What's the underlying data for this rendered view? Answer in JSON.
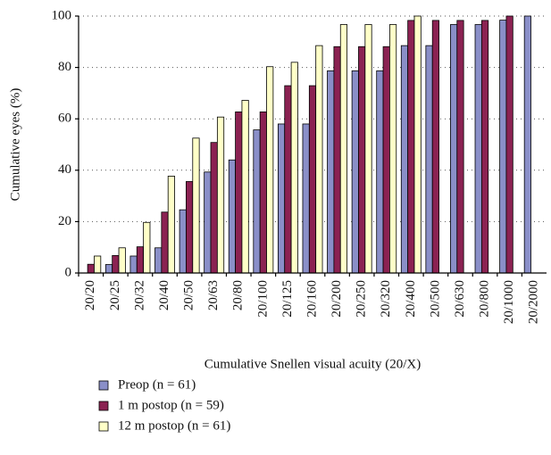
{
  "chart_data": {
    "type": "bar",
    "ylabel": "Cumulative eyes (%)",
    "xlabel": "Cumulative Snellen visual acuity (20/X)",
    "categories": [
      "20/20",
      "20/25",
      "20/32",
      "20/40",
      "20/50",
      "20/63",
      "20/80",
      "20/100",
      "20/125",
      "20/160",
      "20/200",
      "20/250",
      "20/320",
      "20/400",
      "20/500",
      "20/630",
      "20/800",
      "20/1000",
      "20/2000"
    ],
    "series": [
      {
        "name": "Preop (n = 61)",
        "color": "#8a8fc8",
        "values": [
          0,
          3.3,
          6.6,
          9.8,
          24.6,
          39.3,
          44,
          55.7,
          58,
          58,
          78.7,
          78.7,
          78.7,
          88.5,
          88.5,
          96.7,
          96.7,
          98.4,
          100
        ]
      },
      {
        "name": "1 m postop (n = 59)",
        "color": "#8b2252",
        "values": [
          3.4,
          6.8,
          10.2,
          23.7,
          35.6,
          50.8,
          62.7,
          62.7,
          72.9,
          72.9,
          88.1,
          88.1,
          88.1,
          98.3,
          98.3,
          98.3,
          98.3,
          100,
          null
        ]
      },
      {
        "name": "12 m postop (n = 61)",
        "color": "#ffffc8",
        "values": [
          6.6,
          9.8,
          19.7,
          37.7,
          52.5,
          60.7,
          67.2,
          80.3,
          82,
          88.5,
          96.7,
          96.7,
          96.7,
          100,
          null,
          null,
          null,
          null,
          null
        ]
      }
    ],
    "ylim": [
      0,
      100
    ],
    "yticks": [
      0,
      20,
      40,
      60,
      80,
      100
    ],
    "grid": true,
    "legend": "bottom"
  }
}
